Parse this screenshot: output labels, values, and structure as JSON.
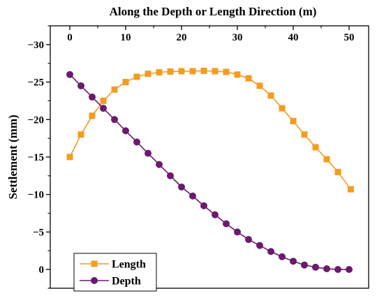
{
  "chart_data": {
    "type": "line",
    "title": "",
    "xlabel": "Along the Depth or Length Direction (m)",
    "ylabel": "Settlement (mm)",
    "xlim": [
      -3.5,
      53.5
    ],
    "ylim": [
      -32.5,
      2.5
    ],
    "y_inverted": true,
    "x_axis_position": "top",
    "x_ticks": [
      0,
      10,
      20,
      30,
      40,
      50
    ],
    "x_tick_labels": [
      "0",
      "10",
      "20",
      "30",
      "40",
      "50"
    ],
    "y_ticks": [
      -30,
      -25,
      -20,
      -15,
      -10,
      -5,
      0
    ],
    "y_tick_labels": [
      "−30",
      "−25",
      "−20",
      "−15",
      "−10",
      "−5",
      "0"
    ],
    "grid": false,
    "legend_position": "bottom-left",
    "series": [
      {
        "name": "Length",
        "color": "#F39C1F",
        "marker": "square",
        "x": [
          0,
          2,
          4,
          6,
          8,
          10,
          12,
          14,
          16,
          18,
          20,
          22,
          24,
          26,
          28,
          30,
          32,
          34,
          36,
          38,
          40,
          42,
          44,
          46,
          48,
          50.3
        ],
        "y": [
          -15,
          -18,
          -20.5,
          -22.5,
          -24,
          -25,
          -25.7,
          -26.1,
          -26.3,
          -26.4,
          -26.45,
          -26.45,
          -26.5,
          -26.45,
          -26.35,
          -26.0,
          -25.5,
          -24.5,
          -23.2,
          -21.5,
          -19.8,
          -18.0,
          -16.3,
          -14.7,
          -13.0,
          -10.7
        ]
      },
      {
        "name": "Depth",
        "color": "#6B1A6E",
        "marker": "circle",
        "x": [
          0,
          2,
          4,
          6,
          8,
          10,
          12,
          14,
          16,
          18,
          20,
          22,
          24,
          26,
          28,
          30,
          32,
          34,
          36,
          38,
          40,
          42,
          44,
          46,
          48,
          50
        ],
        "y": [
          -26,
          -24.5,
          -23.0,
          -21.5,
          -20.0,
          -18.5,
          -17.0,
          -15.5,
          -14.0,
          -12.5,
          -11.0,
          -9.8,
          -8.5,
          -7.3,
          -6.1,
          -5.0,
          -4.0,
          -3.2,
          -2.4,
          -1.7,
          -1.1,
          -0.6,
          -0.3,
          -0.1,
          0.0,
          0.0
        ]
      }
    ]
  }
}
